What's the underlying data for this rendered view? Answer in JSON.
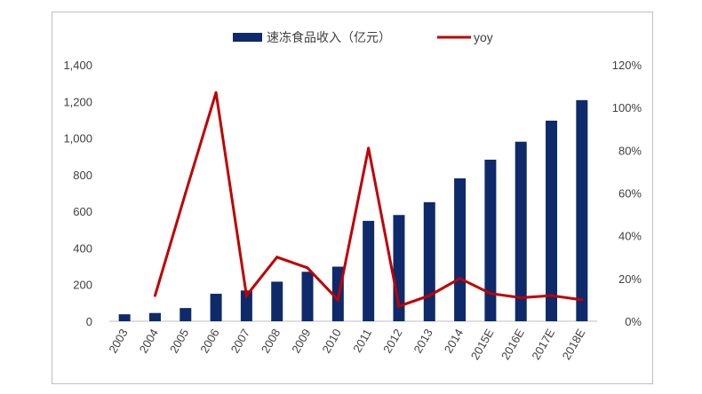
{
  "chart_data": {
    "type": "bar",
    "categories": [
      "2003",
      "2004",
      "2005",
      "2006",
      "2007",
      "2008",
      "2009",
      "2010",
      "2011",
      "2012",
      "2013",
      "2014",
      "2015E",
      "2016E",
      "2017E",
      "2018E"
    ],
    "series": [
      {
        "name": "速冻食品收入（亿元）",
        "type": "bar",
        "axis": "left",
        "color": "#0e2a6b",
        "values": [
          38,
          45,
          72,
          150,
          168,
          216,
          270,
          298,
          548,
          580,
          650,
          780,
          882,
          980,
          1095,
          1207
        ]
      },
      {
        "name": "yoy",
        "type": "line",
        "axis": "right",
        "color": "#c00000",
        "values": [
          null,
          12,
          60,
          107,
          12,
          30,
          25,
          10,
          81,
          7,
          12,
          20,
          13,
          11,
          12,
          10
        ]
      }
    ],
    "yleft": {
      "ylim": [
        0,
        1400
      ],
      "ticks": [
        "0",
        "200",
        "400",
        "600",
        "800",
        "1,000",
        "1,200",
        "1,400"
      ]
    },
    "yright": {
      "ylim": [
        0,
        120
      ],
      "ticks": [
        "0%",
        "20%",
        "40%",
        "60%",
        "80%",
        "100%",
        "120%"
      ]
    },
    "legend": {
      "placement": "top-center",
      "entries": [
        "速冻食品收入（亿元）",
        "yoy"
      ]
    },
    "grid": false
  }
}
